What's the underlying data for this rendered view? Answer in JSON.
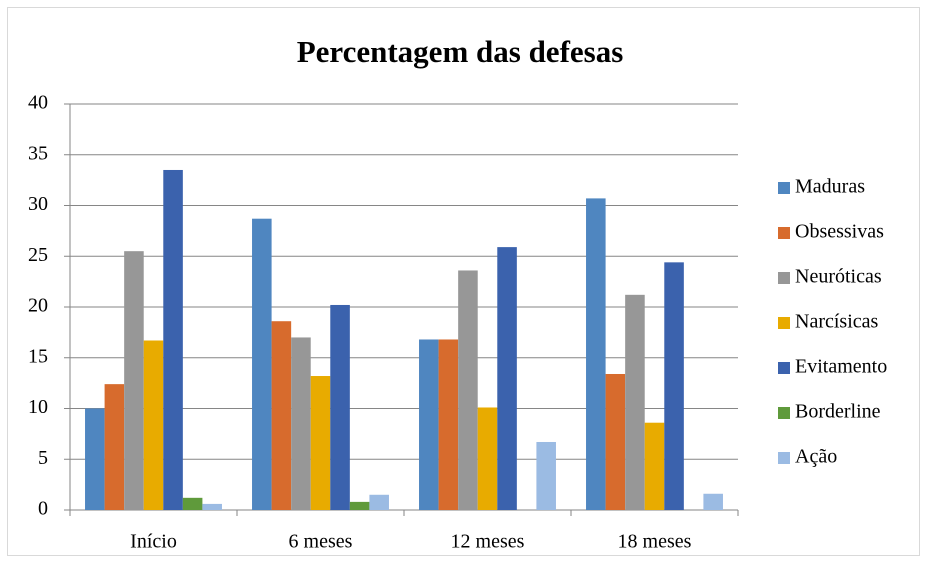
{
  "chart_data": {
    "type": "bar",
    "title": "Percentagem das defesas",
    "categories": [
      "Início",
      "6 meses",
      "12 meses",
      "18 meses"
    ],
    "series": [
      {
        "name": "Maduras",
        "color": "#4f86c0",
        "values": [
          10.0,
          28.7,
          16.8,
          30.7
        ]
      },
      {
        "name": "Obsessivas",
        "color": "#d76b2d",
        "values": [
          12.4,
          18.6,
          16.8,
          13.4
        ]
      },
      {
        "name": "Neuróticas",
        "color": "#979797",
        "values": [
          25.5,
          17.0,
          23.6,
          21.2
        ]
      },
      {
        "name": "Narcísicas",
        "color": "#e8ab00",
        "values": [
          16.7,
          13.2,
          10.1,
          8.6
        ]
      },
      {
        "name": "Evitamento",
        "color": "#3b62ad",
        "values": [
          33.5,
          20.2,
          25.9,
          24.4
        ]
      },
      {
        "name": "Borderline",
        "color": "#5f9a3b",
        "values": [
          1.2,
          0.8,
          0,
          0
        ]
      },
      {
        "name": "Ação",
        "color": "#9bbbe3",
        "values": [
          0.6,
          1.5,
          6.7,
          1.6
        ]
      }
    ],
    "ylim": [
      0,
      40
    ],
    "yticks": [
      0,
      5,
      10,
      15,
      20,
      25,
      30,
      35,
      40
    ],
    "grid": true,
    "legend": "right"
  }
}
